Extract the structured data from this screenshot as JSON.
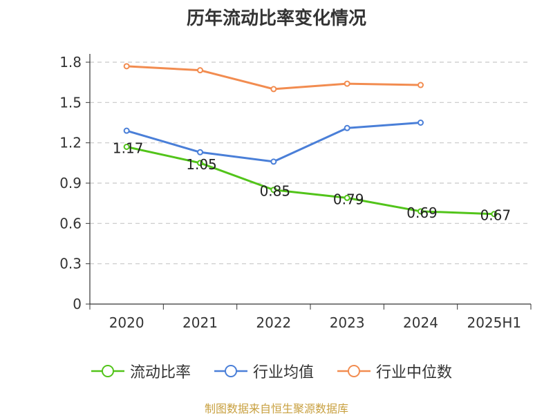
{
  "title": "历年流动比率变化情况",
  "source": "制图数据来自恒生聚源数据库",
  "chart_data": {
    "type": "line",
    "categories": [
      "2020",
      "2021",
      "2022",
      "2023",
      "2024",
      "2025H1"
    ],
    "ylim": [
      0,
      1.8
    ],
    "yticks": [
      "0",
      "0.3",
      "0.6",
      "0.9",
      "1.2",
      "1.5",
      "1.8"
    ],
    "grid": "horizontal dashed",
    "legend_position": "bottom",
    "series": [
      {
        "name": "流动比率",
        "color": "#52c41a",
        "values": [
          1.17,
          1.05,
          0.85,
          0.79,
          0.69,
          0.67
        ],
        "data_labels": [
          "1.17",
          "1.05",
          "0.85",
          "0.79",
          "0.69",
          "0.67"
        ]
      },
      {
        "name": "行业均值",
        "color": "#4a7fd8",
        "values": [
          1.29,
          1.13,
          1.06,
          1.31,
          1.35,
          null
        ]
      },
      {
        "name": "行业中位数",
        "color": "#f28c50",
        "values": [
          1.77,
          1.74,
          1.6,
          1.64,
          1.63,
          null
        ]
      }
    ]
  }
}
